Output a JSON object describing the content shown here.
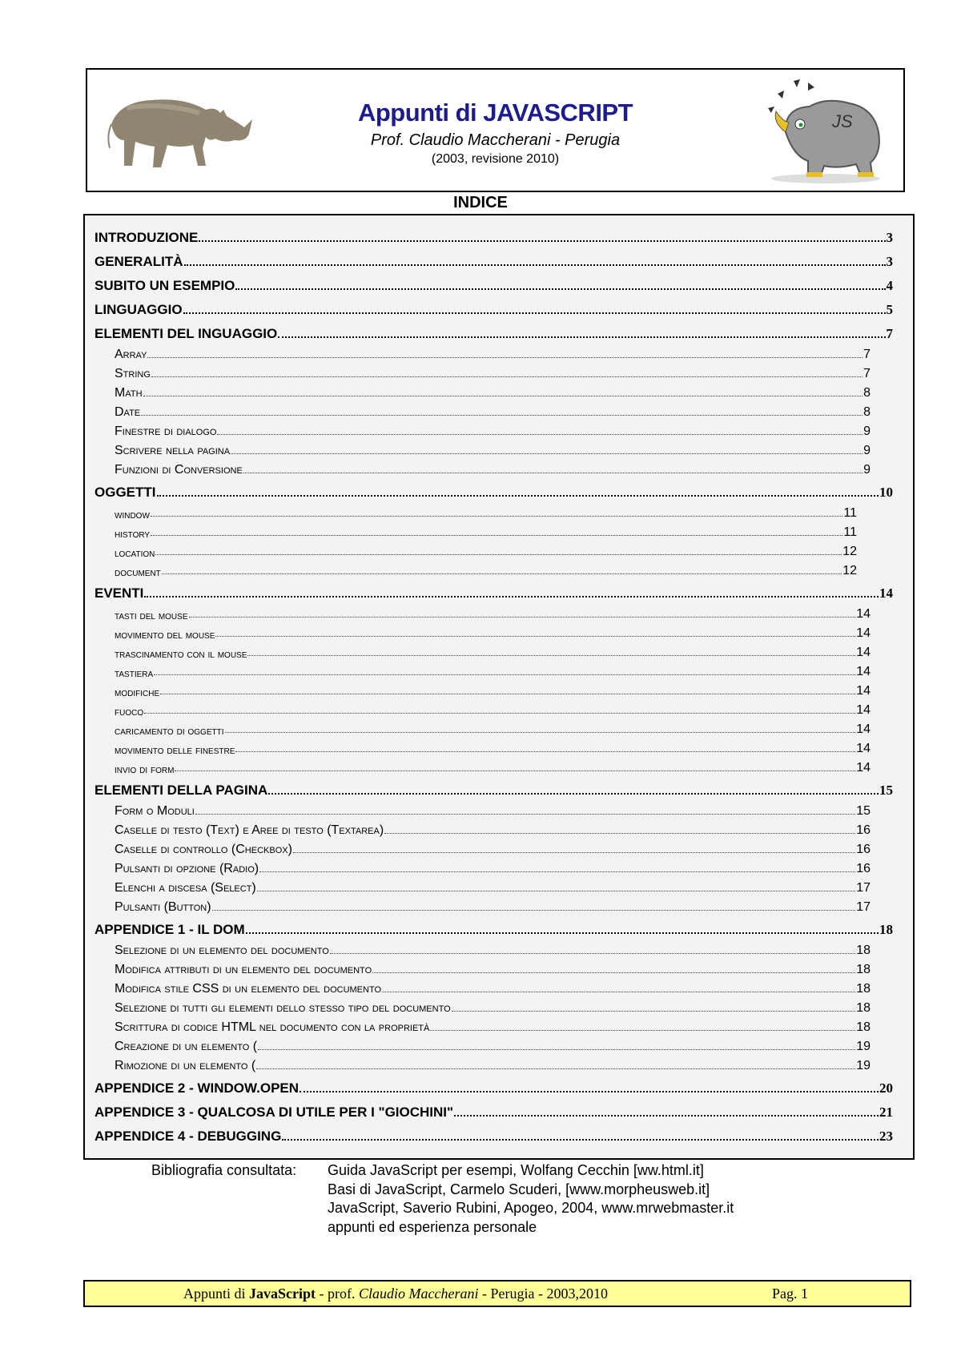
{
  "header": {
    "title": "Appunti di JAVASCRIPT",
    "subtitle": "Prof. Claudio Maccherani - Perugia",
    "year": "(2003, revisione 2010)",
    "title_color": "#1c1c8e",
    "logo_right_text": "JS"
  },
  "toc": {
    "heading": "INDICE",
    "entries": [
      {
        "level": 1,
        "label": "INTRODUZIONE",
        "page": "3"
      },
      {
        "level": 1,
        "label": "GENERALITÀ",
        "page": "3"
      },
      {
        "level": 1,
        "label": "SUBITO UN ESEMPIO",
        "page": "4"
      },
      {
        "level": 1,
        "label": "LINGUAGGIO",
        "page": "5"
      },
      {
        "level": 1,
        "label": "ELEMENTI DEL INGUAGGIO",
        "page": "7"
      },
      {
        "level": 2,
        "label": "Array",
        "page": "7"
      },
      {
        "level": 2,
        "label": "String",
        "page": "7"
      },
      {
        "level": 2,
        "label": "Math",
        "page": "8"
      },
      {
        "level": 2,
        "label": "Date",
        "page": "8"
      },
      {
        "level": 2,
        "label": "Finestre di dialogo",
        "page": "9"
      },
      {
        "level": 2,
        "label": "Scrivere nella pagina",
        "page": "9"
      },
      {
        "level": 2,
        "label": "Funzioni di Conversione",
        "page": "9"
      },
      {
        "level": 1,
        "label": "OGGETTI",
        "page": "10"
      },
      {
        "level": 3,
        "label": "window",
        "page": "11"
      },
      {
        "level": 3,
        "label": "history",
        "page": "11"
      },
      {
        "level": 3,
        "label": "location",
        "page": "12"
      },
      {
        "level": 3,
        "label": "document",
        "page": "12"
      },
      {
        "level": 1,
        "label": "EVENTI",
        "page": "14"
      },
      {
        "level": 2,
        "label": "tasti del mouse",
        "page": "14",
        "small": true
      },
      {
        "level": 2,
        "label": "movimento del mouse",
        "page": "14",
        "small": true
      },
      {
        "level": 2,
        "label": "trascinamento con il mouse",
        "page": "14",
        "small": true
      },
      {
        "level": 2,
        "label": "tastiera",
        "page": "14",
        "small": true
      },
      {
        "level": 2,
        "label": "modifiche",
        "page": "14",
        "small": true
      },
      {
        "level": 2,
        "label": "fuoco",
        "page": "14",
        "small": true
      },
      {
        "level": 2,
        "label": "caricamento di oggetti",
        "page": "14",
        "small": true
      },
      {
        "level": 2,
        "label": "movimento delle finestre",
        "page": "14",
        "small": true
      },
      {
        "level": 2,
        "label": "invio di form",
        "page": "14",
        "small": true
      },
      {
        "level": 1,
        "label": "ELEMENTI DELLA PAGINA",
        "page": "15"
      },
      {
        "level": 2,
        "label": "Form o Moduli",
        "page": "15"
      },
      {
        "level": 2,
        "label": "Caselle di testo (Text) e Aree di testo (Textarea)",
        "page": "16"
      },
      {
        "level": 2,
        "label": "Caselle di controllo (Checkbox)",
        "page": "16"
      },
      {
        "level": 2,
        "label": "Pulsanti di opzione (Radio)",
        "page": "16"
      },
      {
        "level": 2,
        "label": "Elenchi a discesa (Select)",
        "page": "17"
      },
      {
        "level": 2,
        "label": "Pulsanti (Button)",
        "page": "17"
      },
      {
        "level": 1,
        "label": "APPENDICE 1 - IL DOM",
        "page": "18"
      },
      {
        "level": 2,
        "label": "Selezione di un elemento del documento",
        "page": "18"
      },
      {
        "level": 2,
        "label": "Modifica attributi di un elemento del documento",
        "page": "18"
      },
      {
        "level": 2,
        "label": "Modifica stile CSS di un elemento del documento",
        "page": "18"
      },
      {
        "level": 2,
        "label": "Selezione di tutti gli elementi dello stesso tipo del documento",
        "page": "18"
      },
      {
        "level": 2,
        "label": "Scrittura di codice HTML nel documento con la proprietà",
        "page": "18"
      },
      {
        "level": 2,
        "label": "Creazione di un elemento (",
        "page": "19"
      },
      {
        "level": 2,
        "label": "Rimozione di un elemento (",
        "page": "19"
      },
      {
        "level": 1,
        "label": "APPENDICE 2 - WINDOW.OPEN",
        "page": "20"
      },
      {
        "level": 1,
        "label": "APPENDICE 3 - QUALCOSA DI UTILE PER I \"GIOCHINI\"",
        "page": "21"
      },
      {
        "level": 1,
        "label": "APPENDICE 4 - DEBUGGING",
        "page": "23"
      }
    ]
  },
  "bibliography": {
    "label": "Bibliografia consultata:",
    "entries": [
      "Guida JavaScript per esempi, Wolfang Cecchin [ww.html.it]",
      "Basi di JavaScript, Carmelo Scuderi, [www.morpheusweb.it]",
      "JavaScript, Saverio Rubini, Apogeo, 2004, www.mrwebmaster.it",
      "appunti ed esperienza personale"
    ]
  },
  "footer": {
    "text_prefix": "Appunti di ",
    "text_bold": "JavaScript",
    "text_mid": " - prof. ",
    "text_italic": "Claudio Maccherani",
    "text_suffix": " - Perugia - 2003,2010",
    "page": "Pag. 1",
    "background": "#ffff99"
  }
}
